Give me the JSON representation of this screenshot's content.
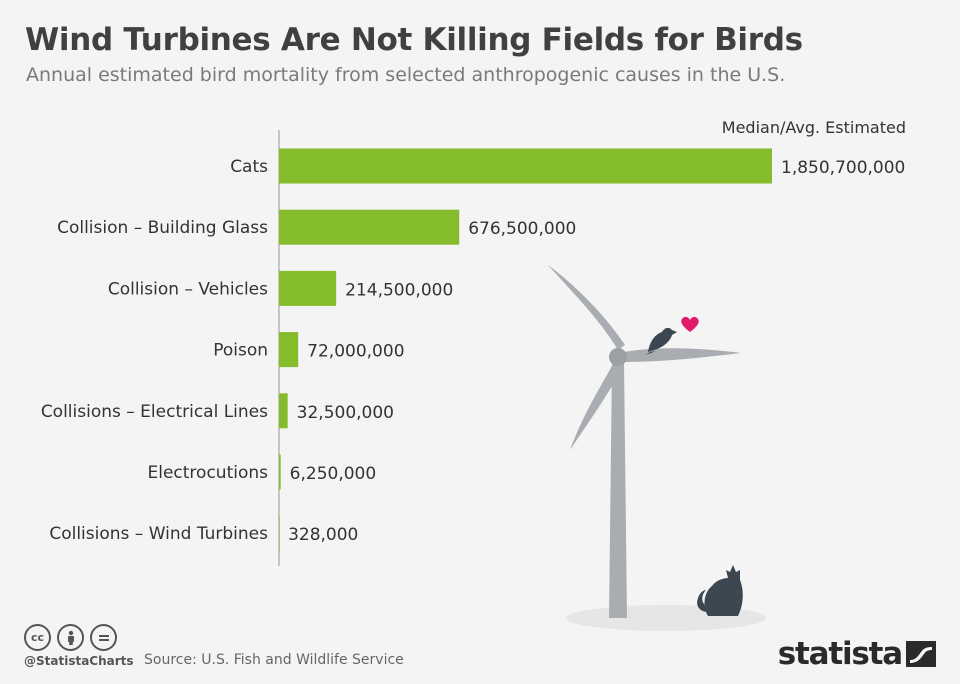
{
  "header": {
    "title": "Wind Turbines Are Not Killing Fields for Birds",
    "subtitle": "Annual estimated bird mortality from selected anthropogenic causes in the U.S."
  },
  "chart_data": {
    "type": "bar",
    "orientation": "horizontal",
    "title": "Wind Turbines Are Not Killing Fields for Birds",
    "subtitle": "Annual estimated bird mortality from selected anthropogenic causes in the U.S.",
    "value_header": "Median/Avg. Estimated",
    "categories": [
      "Cats",
      "Collision – Building Glass",
      "Collision – Vehicles",
      "Poison",
      "Collisions – Electrical Lines",
      "Electrocutions",
      "Collisions – Wind Turbines"
    ],
    "values": [
      1850700000,
      676500000,
      214500000,
      72000000,
      32500000,
      6250000,
      328000
    ],
    "value_labels": [
      "1,850,700,000",
      "676,500,000",
      "214,500,000",
      "72,000,000",
      "32,500,000",
      "6,250,000",
      "328,000"
    ],
    "bar_color": "#84bc2b",
    "grid": false
  },
  "colors": {
    "background": "#f4f4f4",
    "bar": "#84bc2b",
    "turbine": "#a9adb1",
    "cat": "#3d4752",
    "heart": "#e0196d"
  },
  "illustration": {
    "icons": [
      "wind-turbine-icon",
      "bird-icon",
      "heart-icon",
      "cat-icon"
    ]
  },
  "footer": {
    "license_icons": [
      "cc-icon",
      "attribution-icon",
      "no-derivatives-icon"
    ],
    "cc_label": "cc",
    "handle": "@StatistaCharts",
    "source": "Source: U.S. Fish and Wildlife Service",
    "brand": "statista"
  }
}
